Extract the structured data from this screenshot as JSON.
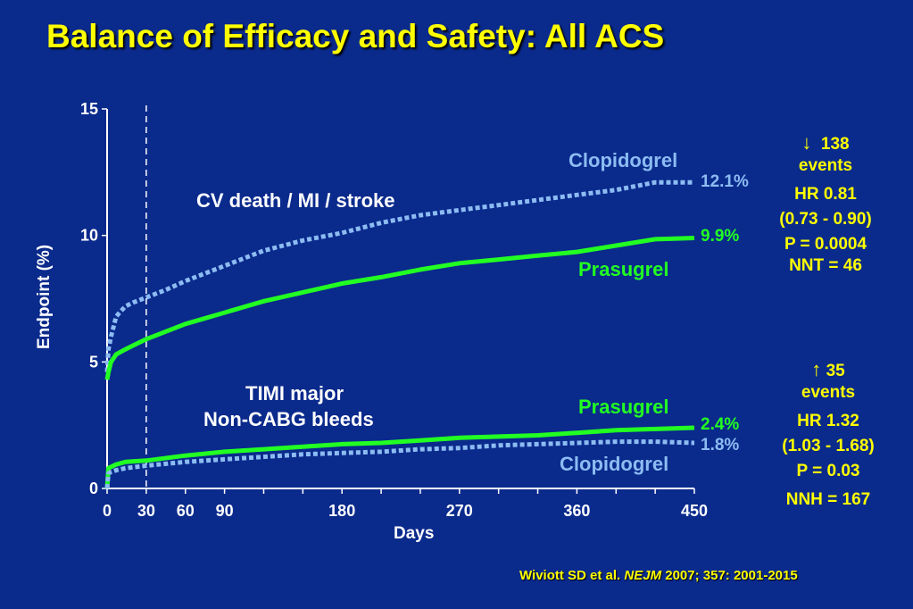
{
  "slide": {
    "title": "Balance of Efficacy and Safety: All ACS",
    "citation": {
      "authors": "Wiviott SD et al. ",
      "journal": "NEJM",
      "rest": " 2007; 357: 2001-2015"
    }
  },
  "colors": {
    "background": "#0a2a8c",
    "prasugrel": "#22ff22",
    "clopidogrel": "#8cbcf2",
    "highlight": "#ffff00",
    "text": "#ffffff"
  },
  "annotations": {
    "efficacy_label": "CV death / MI / stroke",
    "safety_label_line1": "TIMI major",
    "safety_label_line2": "Non-CABG bleeds",
    "clop_top_label": "Clopidogrel",
    "pras_top_label": "Prasugrel",
    "pras_bottom_label": "Prasugrel",
    "clop_bottom_label": "Clopidogrel",
    "clop_eff_end": "12.1%",
    "pras_eff_end": "9.9%",
    "pras_bleed_end": "2.4%",
    "clop_bleed_end": "1.8%"
  },
  "efficacy_stats": {
    "arrow": "↓",
    "events_count": "138",
    "events_word": "events",
    "hr": "HR 0.81",
    "ci": "(0.73 - 0.90)",
    "p": "P = 0.0004",
    "nnt": "NNT = 46"
  },
  "safety_stats": {
    "arrow": "↑",
    "events_count": "35",
    "events_word": "events",
    "hr": "HR 1.32",
    "ci": "(1.03 - 1.68)",
    "p": "P = 0.03",
    "nnh": "NNH = 167"
  },
  "chart_data": {
    "type": "line",
    "xlabel": "Days",
    "ylabel": "Endpoint (%)",
    "xlim": [
      0,
      450
    ],
    "ylim": [
      0,
      15
    ],
    "xticks": [
      0,
      30,
      60,
      90,
      180,
      270,
      360,
      450
    ],
    "yticks": [
      0,
      5,
      10,
      15
    ],
    "reference_line_x": 30,
    "grid": false,
    "series": [
      {
        "name": "Clopidogrel",
        "endpoint": "CV death / MI / stroke",
        "style": "dotted",
        "x": [
          0,
          1,
          3,
          7,
          14,
          20,
          30,
          45,
          60,
          90,
          120,
          150,
          180,
          210,
          240,
          270,
          300,
          330,
          360,
          390,
          420,
          450
        ],
        "y": [
          4.6,
          5.5,
          6.0,
          6.8,
          7.2,
          7.35,
          7.55,
          7.85,
          8.2,
          8.8,
          9.4,
          9.8,
          10.1,
          10.5,
          10.8,
          11.0,
          11.2,
          11.4,
          11.6,
          11.8,
          12.1,
          12.1
        ]
      },
      {
        "name": "Prasugrel",
        "endpoint": "CV death / MI / stroke",
        "style": "solid",
        "x": [
          0,
          1,
          3,
          7,
          14,
          20,
          30,
          45,
          60,
          90,
          120,
          150,
          180,
          210,
          240,
          270,
          300,
          330,
          360,
          390,
          420,
          450
        ],
        "y": [
          4.3,
          4.6,
          5.0,
          5.3,
          5.5,
          5.65,
          5.9,
          6.2,
          6.5,
          6.95,
          7.4,
          7.75,
          8.1,
          8.35,
          8.65,
          8.9,
          9.05,
          9.2,
          9.35,
          9.6,
          9.85,
          9.9
        ]
      },
      {
        "name": "Prasugrel",
        "endpoint": "TIMI major Non-CABG bleeds",
        "style": "solid",
        "x": [
          0,
          1,
          3,
          7,
          14,
          30,
          60,
          90,
          120,
          150,
          180,
          210,
          240,
          270,
          300,
          330,
          360,
          390,
          420,
          450
        ],
        "y": [
          0.0,
          0.8,
          0.85,
          0.95,
          1.05,
          1.1,
          1.3,
          1.45,
          1.55,
          1.65,
          1.75,
          1.8,
          1.9,
          2.0,
          2.05,
          2.1,
          2.2,
          2.3,
          2.35,
          2.4
        ]
      },
      {
        "name": "Clopidogrel",
        "endpoint": "TIMI major Non-CABG bleeds",
        "style": "dotted",
        "x": [
          0,
          1,
          3,
          7,
          14,
          30,
          60,
          90,
          120,
          150,
          180,
          210,
          240,
          270,
          300,
          330,
          360,
          390,
          420,
          450
        ],
        "y": [
          0.0,
          0.6,
          0.65,
          0.72,
          0.8,
          0.9,
          1.05,
          1.15,
          1.25,
          1.35,
          1.4,
          1.45,
          1.55,
          1.6,
          1.7,
          1.75,
          1.8,
          1.85,
          1.85,
          1.8
        ]
      }
    ]
  }
}
